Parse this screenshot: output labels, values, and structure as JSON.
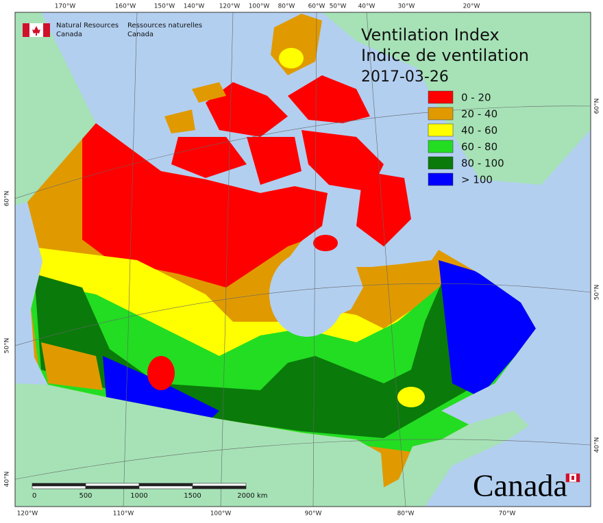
{
  "header": {
    "agency_en": [
      "Natural Resources",
      "Canada"
    ],
    "agency_fr": [
      "Ressources naturelles",
      "Canada"
    ]
  },
  "title": [
    "Ventilation Index",
    "Indice de ventilation"
  ],
  "date": "2017-03-26",
  "legend": [
    {
      "label": "0 - 20",
      "color": "#ff0000"
    },
    {
      "label": "20 - 40",
      "color": "#e09a00"
    },
    {
      "label": "40 - 60",
      "color": "#ffff00"
    },
    {
      "label": "60 - 80",
      "color": "#22dd22"
    },
    {
      "label": "80 - 100",
      "color": "#0a7a0a"
    },
    {
      "label": "> 100",
      "color": "#0000ff"
    }
  ],
  "graticule": {
    "top": [
      "170°W",
      "160°W",
      "150°W",
      "140°W",
      "120°W",
      "100°W",
      "80°W",
      "60°W",
      "50°W",
      "40°W",
      "30°W",
      "20°W"
    ],
    "bottom": [
      "120°W",
      "110°W",
      "100°W",
      "90°W",
      "80°W",
      "70°W"
    ],
    "left": [
      "60°N",
      "50°N",
      "40°N"
    ],
    "right": [
      "60°N",
      "50°N",
      "40°N"
    ]
  },
  "scale_bar": {
    "labels": [
      "0",
      "500",
      "1000",
      "1500",
      "2000"
    ],
    "unit": "km"
  },
  "wordmark": "Canada"
}
